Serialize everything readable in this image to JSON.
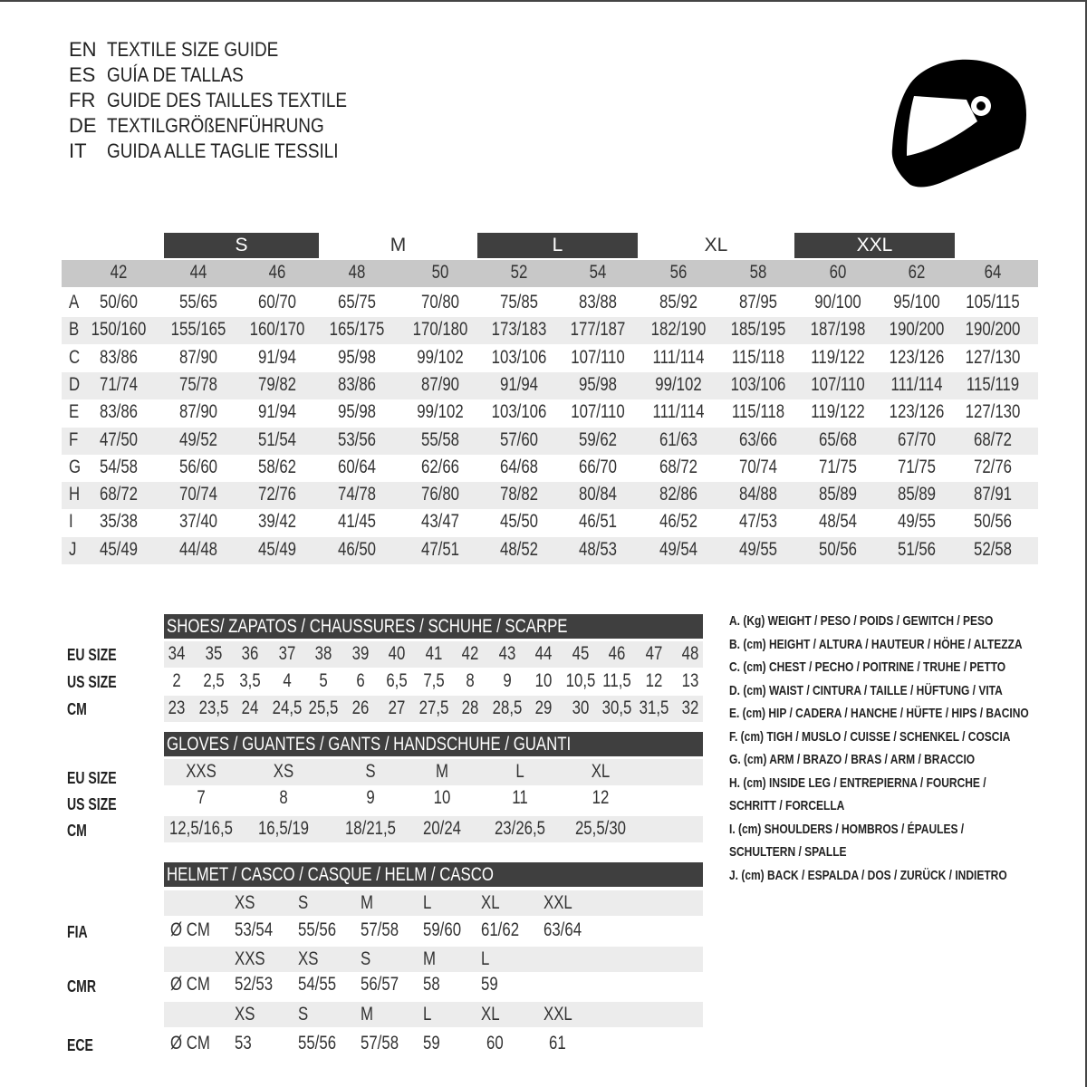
{
  "titles": [
    {
      "code": "EN",
      "text": "TEXTILE SIZE GUIDE"
    },
    {
      "code": "ES",
      "text": "GUÍA DE TALLAS"
    },
    {
      "code": "FR",
      "text": "GUIDE DES TAILLES TEXTILE"
    },
    {
      "code": "DE",
      "text": "TEXTILGRÖßENFÜHRUNG"
    },
    {
      "code": "IT",
      "text": "GUIDA ALLE TAGLIE TESSILI"
    }
  ],
  "icon": "helmet-icon",
  "colors": {
    "header_dark": "#3f3f3f",
    "header_grey": "#c8c8c8",
    "row_band": "#ececec"
  },
  "textile": {
    "size_groups": [
      "S",
      "M",
      "L",
      "XL",
      "XXL"
    ],
    "columns": [
      "42",
      "44",
      "46",
      "48",
      "50",
      "52",
      "54",
      "56",
      "58",
      "60",
      "62",
      "64"
    ],
    "rows": [
      {
        "label": "A",
        "values": [
          "50/60",
          "55/65",
          "60/70",
          "65/75",
          "70/80",
          "75/85",
          "83/88",
          "85/92",
          "87/95",
          "90/100",
          "95/100",
          "105/115"
        ]
      },
      {
        "label": "B",
        "values": [
          "150/160",
          "155/165",
          "160/170",
          "165/175",
          "170/180",
          "173/183",
          "177/187",
          "182/190",
          "185/195",
          "187/198",
          "190/200",
          "190/200"
        ]
      },
      {
        "label": "C",
        "values": [
          "83/86",
          "87/90",
          "91/94",
          "95/98",
          "99/102",
          "103/106",
          "107/110",
          "111/114",
          "115/118",
          "119/122",
          "123/126",
          "127/130"
        ]
      },
      {
        "label": "D",
        "values": [
          "71/74",
          "75/78",
          "79/82",
          "83/86",
          "87/90",
          "91/94",
          "95/98",
          "99/102",
          "103/106",
          "107/110",
          "111/114",
          "115/119"
        ]
      },
      {
        "label": "E",
        "values": [
          "83/86",
          "87/90",
          "91/94",
          "95/98",
          "99/102",
          "103/106",
          "107/110",
          "111/114",
          "115/118",
          "119/122",
          "123/126",
          "127/130"
        ]
      },
      {
        "label": "F",
        "values": [
          "47/50",
          "49/52",
          "51/54",
          "53/56",
          "55/58",
          "57/60",
          "59/62",
          "61/63",
          "63/66",
          "65/68",
          "67/70",
          "68/72"
        ]
      },
      {
        "label": "G",
        "values": [
          "54/58",
          "56/60",
          "58/62",
          "60/64",
          "62/66",
          "64/68",
          "66/70",
          "68/72",
          "70/74",
          "71/75",
          "71/75",
          "72/76"
        ]
      },
      {
        "label": "H",
        "values": [
          "68/72",
          "70/74",
          "72/76",
          "74/78",
          "76/80",
          "78/82",
          "80/84",
          "82/86",
          "84/88",
          "85/89",
          "85/89",
          "87/91"
        ]
      },
      {
        "label": "I",
        "values": [
          "35/38",
          "37/40",
          "39/42",
          "41/45",
          "43/47",
          "45/50",
          "46/51",
          "46/52",
          "47/53",
          "48/54",
          "49/55",
          "50/56"
        ]
      },
      {
        "label": "J",
        "values": [
          "45/49",
          "44/48",
          "45/49",
          "46/50",
          "47/51",
          "48/52",
          "48/53",
          "49/54",
          "49/55",
          "50/56",
          "51/56",
          "52/58"
        ]
      }
    ]
  },
  "shoes": {
    "title": "SHOES/ ZAPATOS / CHAUSSURES / SCHUHE / SCARPE",
    "rows": [
      {
        "label": "EU SIZE",
        "values": [
          "34",
          "35",
          "36",
          "37",
          "38",
          "39",
          "40",
          "41",
          "42",
          "43",
          "44",
          "45",
          "46",
          "47",
          "48"
        ]
      },
      {
        "label": "US SIZE",
        "values": [
          "2",
          "2,5",
          "3,5",
          "4",
          "5",
          "6",
          "6,5",
          "7,5",
          "8",
          "9",
          "10",
          "10,5",
          "11,5",
          "12",
          "13"
        ]
      },
      {
        "label": "CM",
        "values": [
          "23",
          "23,5",
          "24",
          "24,5",
          "25,5",
          "26",
          "27",
          "27,5",
          "28",
          "28,5",
          "29",
          "30",
          "30,5",
          "31,5",
          "32"
        ]
      }
    ]
  },
  "gloves": {
    "title": "GLOVES / GUANTES / GANTS / HANDSCHUHE / GUANTI",
    "rows": [
      {
        "label": "EU SIZE",
        "values": [
          "XXS",
          "XS",
          "S",
          "M",
          "L",
          "XL"
        ]
      },
      {
        "label": "US SIZE",
        "values": [
          "7",
          "8",
          "9",
          "10",
          "11",
          "12"
        ]
      },
      {
        "label": "CM",
        "values": [
          "12,5/16,5",
          "16,5/19",
          "18/21,5",
          "20/24",
          "23/26,5",
          "25,5/30"
        ]
      }
    ]
  },
  "helmet": {
    "title": "HELMET / CASCO / CASQUE / HELM / CASCO",
    "unit": "Ø CM",
    "standards": [
      {
        "label": "FIA",
        "sizes": [
          "XS",
          "S",
          "M",
          "L",
          "XL",
          "XXL"
        ],
        "values": [
          "53/54",
          "55/56",
          "57/58",
          "59/60",
          "61/62",
          "63/64"
        ]
      },
      {
        "label": "CMR",
        "sizes": [
          "XXS",
          "XS",
          "S",
          "M",
          "L"
        ],
        "values": [
          "52/53",
          "54/55",
          "56/57",
          "58",
          "59"
        ]
      },
      {
        "label": "ECE",
        "sizes": [
          "XS",
          "S",
          "M",
          "L",
          "XL",
          "XXL"
        ],
        "values": [
          "53",
          "55/56",
          "57/58",
          "59",
          "60",
          "61"
        ]
      }
    ]
  },
  "legend": [
    "A. (Kg) WEIGHT / PESO / POIDS / GEWITCH / PESO",
    "B. (cm) HEIGHT / ALTURA / HAUTEUR / HÖHE / ALTEZZA",
    "C. (cm) CHEST / PECHO / POITRINE / TRUHE / PETTO",
    "D. (cm) WAIST / CINTURA / TAILLE / HÜFTUNG / VITA",
    "E. (cm) HIP / CADERA / HANCHE / HÜFTE / HIPS /  BACINO",
    "F.  (cm) TIGH / MUSLO / CUISSE / SCHENKEL / COSCIA",
    "G. (cm) ARM  / BRAZO / BRAS / ARM / BRACCIO",
    "H. (cm) INSIDE LEG / ENTREPIERNA / FOURCHE /",
    "SCHRITT / FORCELLA",
    "I.  (cm) SHOULDERS / HOMBROS / ÉPAULES /",
    "SCHULTERN / SPALLE",
    "J. (cm) BACK / ESPALDA / DOS / ZURÜCK / INDIETRO"
  ]
}
